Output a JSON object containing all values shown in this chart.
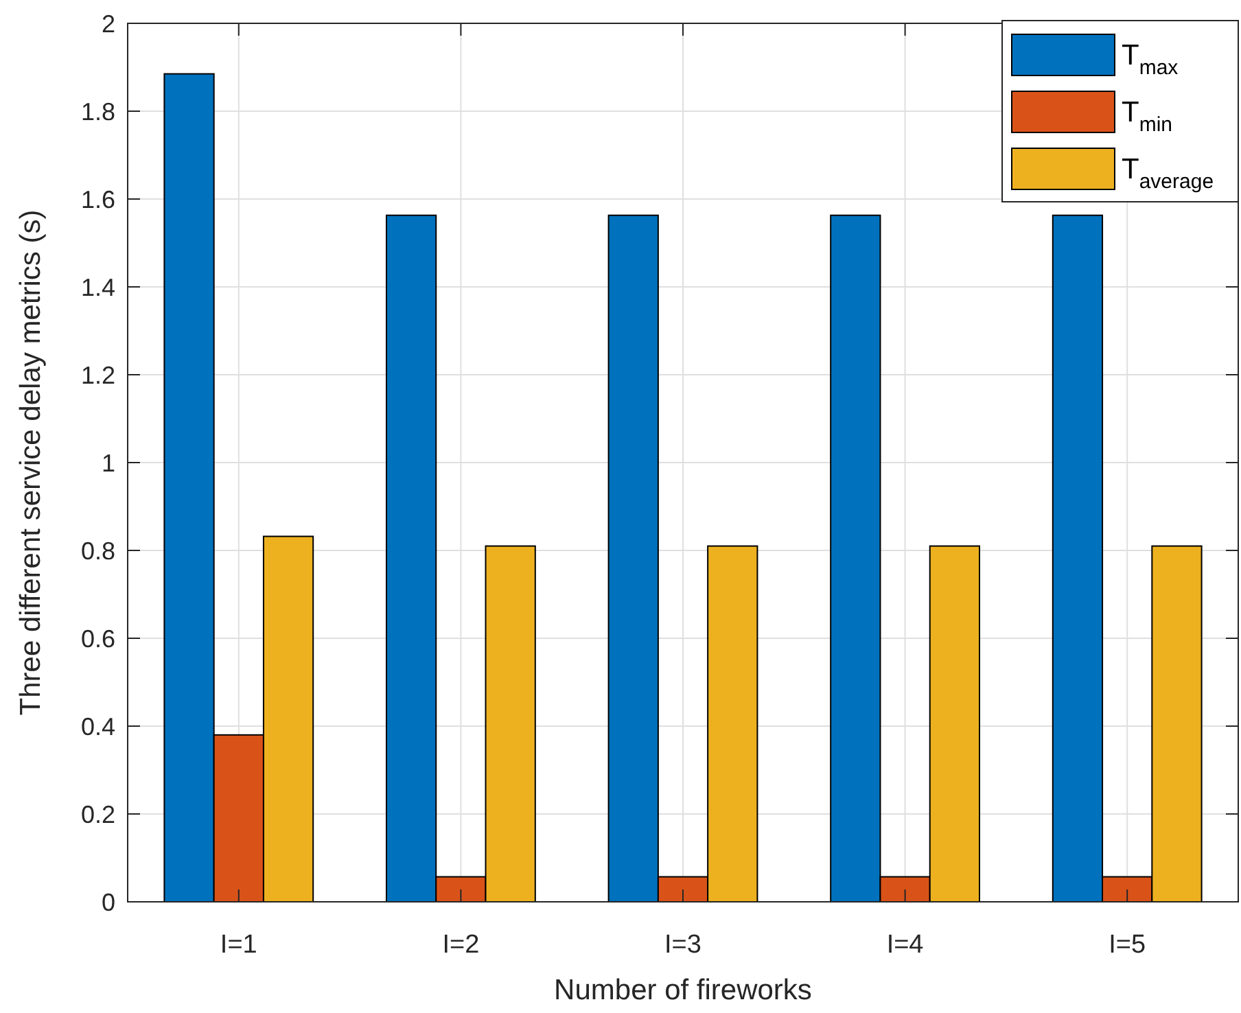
{
  "chart_data": {
    "type": "bar",
    "xlabel": "Number of fireworks",
    "ylabel": "Three different service delay metrics (s)",
    "categories": [
      "I=1",
      "I=2",
      "I=3",
      "I=4",
      "I=5"
    ],
    "series": [
      {
        "name": "T$_{max}$",
        "color": "#0072bd",
        "values": [
          1.885,
          1.563,
          1.563,
          1.563,
          1.563
        ]
      },
      {
        "name": "T$_{min}$",
        "color": "#d95319",
        "values": [
          0.38,
          0.057,
          0.057,
          0.057,
          0.057
        ]
      },
      {
        "name": "T$_{average}$",
        "color": "#edb120",
        "values": [
          0.832,
          0.81,
          0.81,
          0.81,
          0.81
        ]
      }
    ],
    "ylim": [
      0,
      2
    ],
    "yticks": [
      0,
      0.2,
      0.4,
      0.6,
      0.8,
      1,
      1.2,
      1.4,
      1.6,
      1.8,
      2
    ],
    "grid": true,
    "legend": "top right"
  }
}
